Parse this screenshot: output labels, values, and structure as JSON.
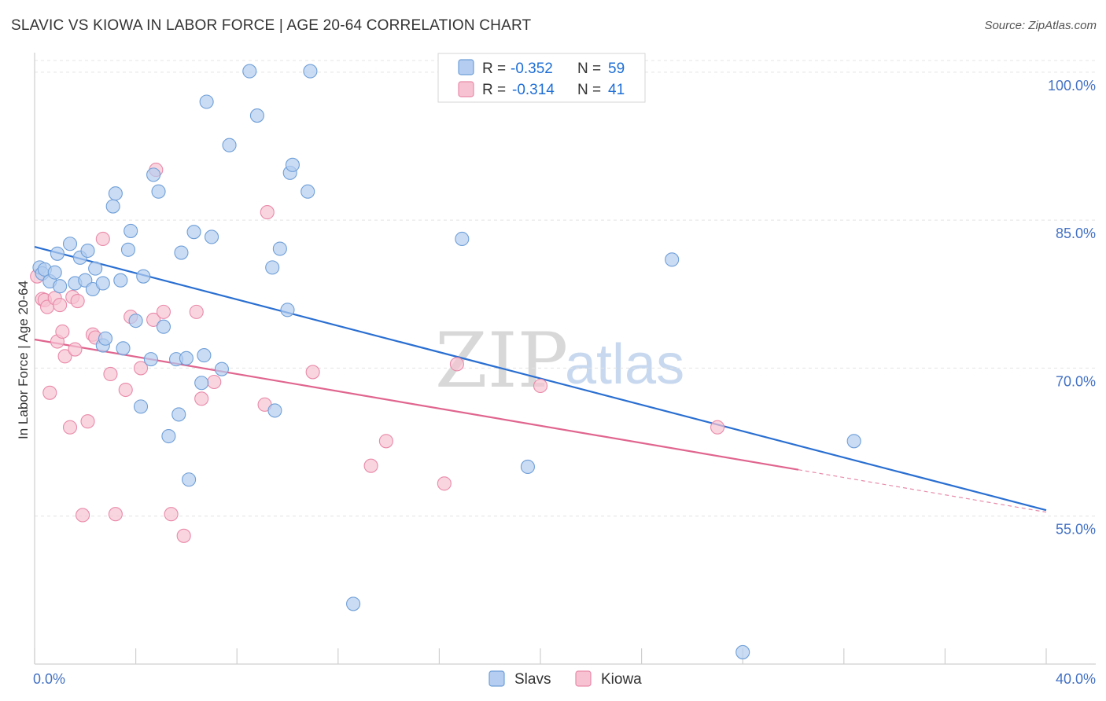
{
  "header": {
    "title": "SLAVIC VS KIOWA IN LABOR FORCE | AGE 20-64 CORRELATION CHART",
    "source": "Source: ZipAtlas.com"
  },
  "watermark": {
    "zip": "ZIP",
    "atlas": "atlas"
  },
  "colors": {
    "slavs_fill": "#b4cdf0",
    "slavs_stroke": "#6f9fd8",
    "slavs_line": "#2a6fd1",
    "kiowa_fill": "#f7c3d3",
    "kiowa_stroke": "#e98aa9",
    "kiowa_line": "#e0658f",
    "grid": "#e4e4e4",
    "axis_label": "#4472c4"
  },
  "legend": {
    "rows": [
      {
        "r_label": "R =",
        "r_value": "-0.352",
        "n_label": "N =",
        "n_value": "59"
      },
      {
        "r_label": "R =",
        "r_value": "-0.314",
        "n_label": "N =",
        "n_value": "41"
      }
    ]
  },
  "bottom_legend": {
    "slavs": "Slavs",
    "kiowa": "Kiowa"
  },
  "chart_data": {
    "type": "scatter",
    "title": "SLAVIC VS KIOWA IN LABOR FORCE | AGE 20-64 CORRELATION CHART",
    "xlabel": "",
    "ylabel": "In Labor Force | Age 20-64",
    "xlim": [
      0,
      40
    ],
    "ylim": [
      40,
      101.5
    ],
    "x_tick_labels": [
      "0.0%",
      "40.0%"
    ],
    "y_ticks": [
      55,
      70,
      85,
      100
    ],
    "y_tick_labels": [
      "55.0%",
      "70.0%",
      "85.0%",
      "100.0%"
    ],
    "grid": true,
    "legend": "top-center",
    "series": [
      {
        "name": "Slavs",
        "R": -0.352,
        "N": 59,
        "trend": {
          "x": [
            0,
            40
          ],
          "y": [
            82.3,
            55.6
          ]
        },
        "points": [
          [
            0.2,
            80.2
          ],
          [
            0.3,
            79.6
          ],
          [
            0.4,
            80.0
          ],
          [
            0.6,
            78.8
          ],
          [
            0.8,
            79.7
          ],
          [
            0.9,
            81.6
          ],
          [
            1.0,
            78.3
          ],
          [
            1.4,
            82.6
          ],
          [
            1.6,
            78.6
          ],
          [
            1.8,
            81.2
          ],
          [
            2.0,
            78.9
          ],
          [
            2.1,
            81.9
          ],
          [
            2.3,
            78.0
          ],
          [
            2.4,
            80.1
          ],
          [
            2.7,
            72.3
          ],
          [
            2.7,
            78.6
          ],
          [
            2.8,
            73.0
          ],
          [
            3.1,
            86.4
          ],
          [
            3.2,
            87.7
          ],
          [
            3.4,
            78.9
          ],
          [
            3.5,
            72.0
          ],
          [
            3.7,
            82.0
          ],
          [
            3.8,
            83.9
          ],
          [
            4.0,
            74.8
          ],
          [
            4.2,
            66.1
          ],
          [
            4.3,
            79.3
          ],
          [
            4.6,
            70.9
          ],
          [
            4.7,
            89.6
          ],
          [
            4.9,
            87.9
          ],
          [
            5.1,
            74.2
          ],
          [
            5.3,
            63.1
          ],
          [
            5.6,
            70.9
          ],
          [
            5.7,
            65.3
          ],
          [
            5.8,
            81.7
          ],
          [
            6.0,
            71.0
          ],
          [
            6.1,
            58.7
          ],
          [
            6.3,
            83.8
          ],
          [
            6.6,
            68.5
          ],
          [
            6.7,
            71.3
          ],
          [
            6.8,
            97.0
          ],
          [
            7.0,
            83.3
          ],
          [
            7.4,
            69.9
          ],
          [
            7.7,
            92.6
          ],
          [
            8.5,
            100.1
          ],
          [
            8.8,
            95.6
          ],
          [
            9.4,
            80.2
          ],
          [
            9.5,
            65.7
          ],
          [
            9.7,
            82.1
          ],
          [
            10.0,
            75.9
          ],
          [
            10.1,
            89.8
          ],
          [
            10.2,
            90.6
          ],
          [
            10.8,
            87.9
          ],
          [
            10.9,
            100.1
          ],
          [
            12.6,
            46.1
          ],
          [
            16.9,
            83.1
          ],
          [
            19.5,
            60.0
          ],
          [
            25.2,
            81.0
          ],
          [
            32.4,
            62.6
          ],
          [
            28.0,
            41.2
          ]
        ]
      },
      {
        "name": "Kiowa",
        "R": -0.314,
        "N": 41,
        "trend": {
          "x": [
            0,
            30.2
          ],
          "y": [
            72.9,
            59.7
          ]
        },
        "trend_dashed": {
          "x": [
            30.2,
            40
          ],
          "y": [
            59.7,
            55.4
          ]
        },
        "points": [
          [
            0.1,
            79.3
          ],
          [
            0.3,
            77.0
          ],
          [
            0.4,
            76.9
          ],
          [
            0.5,
            76.2
          ],
          [
            0.6,
            67.5
          ],
          [
            0.8,
            77.1
          ],
          [
            0.9,
            72.7
          ],
          [
            1.0,
            76.4
          ],
          [
            1.1,
            73.7
          ],
          [
            1.2,
            71.2
          ],
          [
            1.4,
            64.0
          ],
          [
            1.5,
            77.2
          ],
          [
            1.6,
            71.9
          ],
          [
            1.7,
            76.8
          ],
          [
            1.9,
            55.1
          ],
          [
            2.1,
            64.6
          ],
          [
            2.3,
            73.4
          ],
          [
            2.4,
            73.1
          ],
          [
            2.7,
            83.1
          ],
          [
            3.0,
            69.4
          ],
          [
            3.2,
            55.2
          ],
          [
            3.6,
            67.8
          ],
          [
            3.8,
            75.2
          ],
          [
            4.2,
            70.0
          ],
          [
            4.7,
            74.9
          ],
          [
            4.8,
            90.1
          ],
          [
            5.1,
            75.7
          ],
          [
            5.4,
            55.2
          ],
          [
            5.9,
            53.0
          ],
          [
            6.4,
            75.7
          ],
          [
            6.6,
            66.9
          ],
          [
            7.1,
            68.6
          ],
          [
            9.1,
            66.3
          ],
          [
            9.2,
            85.8
          ],
          [
            11.0,
            69.6
          ],
          [
            13.3,
            60.1
          ],
          [
            13.9,
            62.6
          ],
          [
            16.2,
            58.3
          ],
          [
            16.7,
            70.4
          ],
          [
            20.0,
            68.2
          ],
          [
            27.0,
            64.0
          ]
        ]
      }
    ]
  }
}
